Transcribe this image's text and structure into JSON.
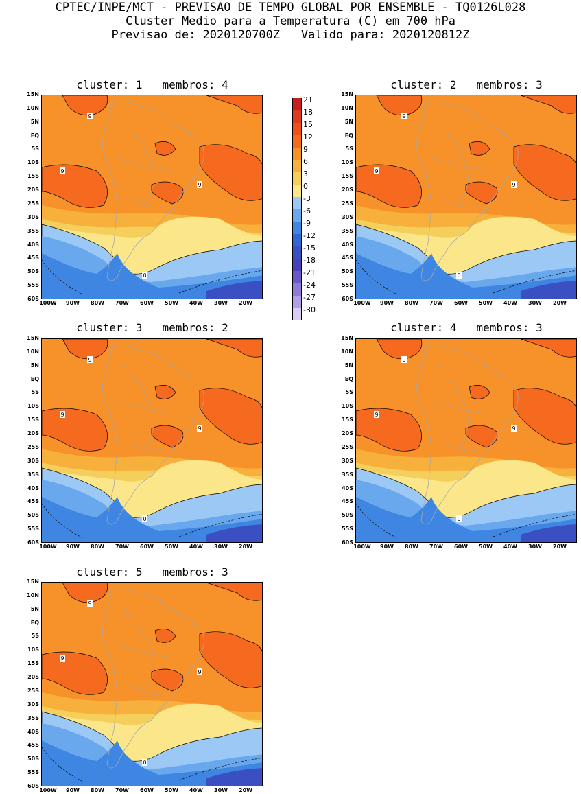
{
  "header": {
    "line1": "CPTEC/INPE/MCT - PREVISAO DE TEMPO GLOBAL POR ENSEMBLE - TQ0126L028",
    "line2": "Cluster Medio para a Temperatura (C) em 700 hPa",
    "line3": "Previsao de: 2020120700Z   Valido para: 2020120812Z"
  },
  "panels": [
    {
      "title": "cluster: 1   membros: 4"
    },
    {
      "title": "cluster: 2   membros: 3"
    },
    {
      "title": "cluster: 3   membros: 2"
    },
    {
      "title": "cluster: 4   membros: 3"
    },
    {
      "title": "cluster: 5   membros: 3"
    }
  ],
  "lat_labels": [
    "15N",
    "10N",
    "5N",
    "EQ",
    "5S",
    "10S",
    "15S",
    "20S",
    "25S",
    "30S",
    "35S",
    "40S",
    "45S",
    "50S",
    "55S",
    "60S"
  ],
  "lon_labels": [
    "100W",
    "90W",
    "80W",
    "70W",
    "60W",
    "50W",
    "40W",
    "30W",
    "20W"
  ],
  "contour_labels": [
    "9",
    "0"
  ],
  "colorbar": {
    "labels": [
      "21",
      "18",
      "15",
      "12",
      "9",
      "6",
      "3",
      "0",
      "-3",
      "-6",
      "-9",
      "-12",
      "-15",
      "-18",
      "-21",
      "-24",
      "-27",
      "-30"
    ],
    "colors": [
      "#c81e1e",
      "#e03a1c",
      "#f0501a",
      "#f56a1e",
      "#f7912a",
      "#f7b03c",
      "#f5cf5c",
      "#fce68a",
      "#9cc8f5",
      "#6aa8ee",
      "#3f86e2",
      "#2f67d4",
      "#3a4fc2",
      "#4b40b8",
      "#6a58c8",
      "#8e7ad8",
      "#b39fe6",
      "#d8cdf4"
    ]
  }
}
